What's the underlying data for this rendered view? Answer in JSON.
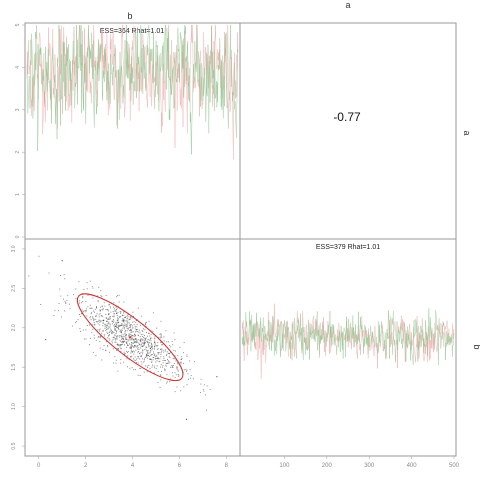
{
  "chart_data": {
    "type": "pairs_mcmc",
    "top_labels": [
      "b",
      "a"
    ],
    "right_labels": [
      "a",
      "b"
    ],
    "panels": [
      {
        "id": "trace_b",
        "type": "line",
        "annotation": "ESS=364 Rhat=1.01",
        "ylim": [
          0,
          5
        ],
        "yticks": [
          0,
          1,
          2,
          3,
          4,
          5
        ],
        "xlim": [
          0,
          500
        ],
        "n_iter": 500,
        "center": 3.9,
        "spread": 0.55,
        "series": [
          {
            "name": "",
            "color": "#f0a8a8"
          },
          {
            "name": "",
            "color": "#8fc48f"
          }
        ]
      },
      {
        "id": "correlation",
        "type": "text",
        "value": "-0.77"
      },
      {
        "id": "scatter_ab",
        "type": "scatter",
        "xlim": [
          -0.5,
          8.5
        ],
        "ylim": [
          0.4,
          3.1
        ],
        "xticks": [
          0,
          2,
          4,
          6,
          8
        ],
        "yticks": [
          0.5,
          1.0,
          1.5,
          2.0,
          2.5,
          3.0
        ],
        "n_points": 1000,
        "mean": [
          3.9,
          1.88
        ],
        "sd": [
          1.15,
          0.26
        ],
        "ellipse": {
          "center": [
            3.9,
            1.88
          ],
          "semi_major_sd_x": 2.2,
          "semi_major_sd_y": 0.52,
          "color": "#d03030"
        },
        "extra_points": [
          [
            1.0,
            2.85
          ],
          [
            0.3,
            1.85
          ],
          [
            6.3,
            0.84
          ],
          [
            7.6,
            1.38
          ]
        ]
      },
      {
        "id": "trace_a",
        "type": "line",
        "annotation": "ESS=379 Rhat=1.01",
        "xlim": [
          0,
          500
        ],
        "xticks": [
          100,
          200,
          300,
          400,
          500
        ],
        "n_iter": 500,
        "center": 1.88,
        "spread": 0.13,
        "series": [
          {
            "name": "",
            "color": "#f0a8a8"
          },
          {
            "name": "",
            "color": "#8fc48f"
          }
        ]
      }
    ]
  }
}
